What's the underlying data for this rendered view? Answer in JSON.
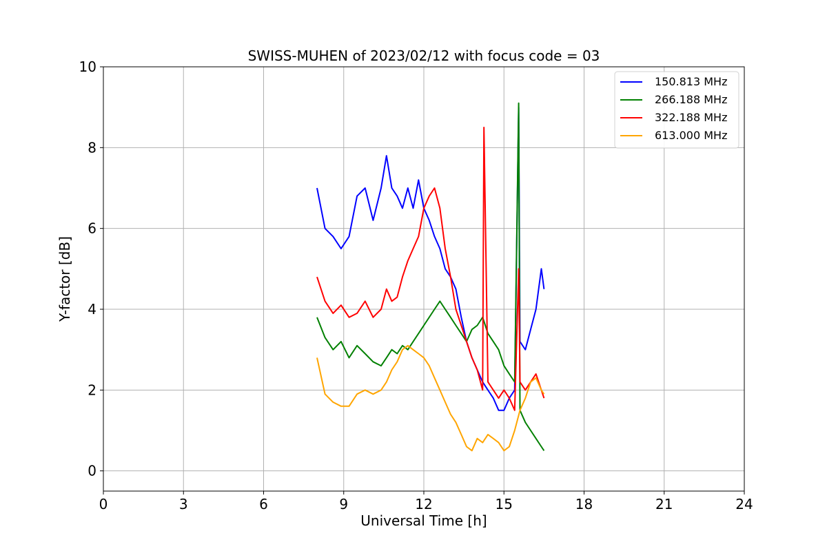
{
  "chart_data": {
    "type": "line",
    "title": "SWISS-MUHEN of 2023/02/12 with focus code = 03",
    "xlabel": "Universal Time [h]",
    "ylabel": "Y-factor [dB]",
    "xlim": [
      0,
      24
    ],
    "ylim": [
      -0.5,
      10
    ],
    "xticks": [
      0,
      3,
      6,
      9,
      12,
      15,
      18,
      21,
      24
    ],
    "yticks": [
      0,
      2,
      4,
      6,
      8,
      10
    ],
    "xtick_labels": [
      "0",
      "3",
      "6",
      "9",
      "12",
      "15",
      "18",
      "21",
      "24"
    ],
    "ytick_labels": [
      "0",
      "2",
      "4",
      "6",
      "8",
      "10"
    ],
    "grid": true,
    "legend_position": "top-right",
    "series": [
      {
        "name": "150.813 MHz",
        "color": "#0000ff",
        "x": [
          8.0,
          8.3,
          8.6,
          8.9,
          9.2,
          9.5,
          9.8,
          10.1,
          10.4,
          10.6,
          10.8,
          11.0,
          11.2,
          11.4,
          11.6,
          11.8,
          12.0,
          12.2,
          12.4,
          12.6,
          12.8,
          13.0,
          13.2,
          13.4,
          13.6,
          13.8,
          14.0,
          14.2,
          14.4,
          14.6,
          14.8,
          15.0,
          15.2,
          15.4,
          15.55,
          15.6,
          15.8,
          16.0,
          16.2,
          16.4,
          16.5
        ],
        "y": [
          7.0,
          6.0,
          5.8,
          5.5,
          5.8,
          6.8,
          7.0,
          6.2,
          7.0,
          7.8,
          7.0,
          6.8,
          6.5,
          7.0,
          6.5,
          7.2,
          6.5,
          6.2,
          5.8,
          5.5,
          5.0,
          4.8,
          4.5,
          3.8,
          3.2,
          2.8,
          2.5,
          2.2,
          2.0,
          1.8,
          1.5,
          1.5,
          1.8,
          2.0,
          9.0,
          3.2,
          3.0,
          3.5,
          4.0,
          5.0,
          4.5
        ],
        "values": [
          7.0,
          6.0,
          5.8,
          5.5,
          5.8,
          6.8,
          7.0,
          6.2,
          7.0,
          7.8,
          7.0,
          6.8,
          6.5,
          7.0,
          6.5,
          7.2,
          6.5,
          6.2,
          5.8,
          5.5,
          5.0,
          4.8,
          4.5,
          3.8,
          3.2,
          2.8,
          2.5,
          2.2,
          2.0,
          1.8,
          1.5,
          1.5,
          1.8,
          2.0,
          9.0,
          3.2,
          3.0,
          3.5,
          4.0,
          5.0,
          4.5
        ]
      },
      {
        "name": "266.188 MHz",
        "color": "#008000",
        "x": [
          8.0,
          8.3,
          8.6,
          8.9,
          9.2,
          9.5,
          9.8,
          10.1,
          10.4,
          10.6,
          10.8,
          11.0,
          11.2,
          11.4,
          11.6,
          11.8,
          12.0,
          12.2,
          12.4,
          12.6,
          12.8,
          13.0,
          13.2,
          13.4,
          13.6,
          13.8,
          14.0,
          14.2,
          14.4,
          14.6,
          14.8,
          15.0,
          15.2,
          15.4,
          15.55,
          15.6,
          15.8,
          16.0,
          16.2,
          16.4,
          16.5
        ],
        "y": [
          3.8,
          3.3,
          3.0,
          3.2,
          2.8,
          3.1,
          2.9,
          2.7,
          2.6,
          2.8,
          3.0,
          2.9,
          3.1,
          3.0,
          3.2,
          3.4,
          3.6,
          3.8,
          4.0,
          4.2,
          4.0,
          3.8,
          3.6,
          3.4,
          3.2,
          3.5,
          3.6,
          3.8,
          3.4,
          3.2,
          3.0,
          2.6,
          2.4,
          2.2,
          9.1,
          1.5,
          1.2,
          1.0,
          0.8,
          0.6,
          0.5
        ],
        "values": [
          3.8,
          3.3,
          3.0,
          3.2,
          2.8,
          3.1,
          2.9,
          2.7,
          2.6,
          2.8,
          3.0,
          2.9,
          3.1,
          3.0,
          3.2,
          3.4,
          3.6,
          3.8,
          4.0,
          4.2,
          4.0,
          3.8,
          3.6,
          3.4,
          3.2,
          3.5,
          3.6,
          3.8,
          3.4,
          3.2,
          3.0,
          2.6,
          2.4,
          2.2,
          9.1,
          1.5,
          1.2,
          1.0,
          0.8,
          0.6,
          0.5
        ]
      },
      {
        "name": "322.188 MHz",
        "color": "#ff0000",
        "x": [
          8.0,
          8.3,
          8.6,
          8.9,
          9.2,
          9.5,
          9.8,
          10.1,
          10.4,
          10.6,
          10.8,
          11.0,
          11.2,
          11.4,
          11.6,
          11.8,
          12.0,
          12.2,
          12.4,
          12.6,
          12.8,
          13.0,
          13.2,
          13.4,
          13.6,
          13.8,
          14.0,
          14.2,
          14.25,
          14.4,
          14.6,
          14.8,
          15.0,
          15.2,
          15.4,
          15.55,
          15.6,
          15.8,
          16.0,
          16.2,
          16.4,
          16.5
        ],
        "y": [
          4.8,
          4.2,
          3.9,
          4.1,
          3.8,
          3.9,
          4.2,
          3.8,
          4.0,
          4.5,
          4.2,
          4.3,
          4.8,
          5.2,
          5.5,
          5.8,
          6.5,
          6.8,
          7.0,
          6.5,
          5.5,
          4.8,
          4.0,
          3.6,
          3.2,
          2.8,
          2.5,
          2.0,
          8.5,
          2.2,
          2.0,
          1.8,
          2.0,
          1.8,
          1.5,
          5.0,
          2.2,
          2.0,
          2.2,
          2.4,
          2.0,
          1.8
        ],
        "values": [
          4.8,
          4.2,
          3.9,
          4.1,
          3.8,
          3.9,
          4.2,
          3.8,
          4.0,
          4.5,
          4.2,
          4.3,
          4.8,
          5.2,
          5.5,
          5.8,
          6.5,
          6.8,
          7.0,
          6.5,
          5.5,
          4.8,
          4.0,
          3.6,
          3.2,
          2.8,
          2.5,
          2.0,
          8.5,
          2.2,
          2.0,
          1.8,
          2.0,
          1.8,
          1.5,
          5.0,
          2.2,
          2.0,
          2.2,
          2.4,
          2.0,
          1.8
        ]
      },
      {
        "name": "613.000 MHz",
        "color": "#ffa500",
        "x": [
          8.0,
          8.3,
          8.6,
          8.9,
          9.2,
          9.5,
          9.8,
          10.1,
          10.4,
          10.6,
          10.8,
          11.0,
          11.2,
          11.4,
          11.6,
          11.8,
          12.0,
          12.2,
          12.4,
          12.6,
          12.8,
          13.0,
          13.2,
          13.4,
          13.6,
          13.8,
          14.0,
          14.2,
          14.4,
          14.6,
          14.8,
          15.0,
          15.2,
          15.4,
          15.6,
          15.8,
          16.0,
          16.2,
          16.4,
          16.5
        ],
        "y": [
          2.8,
          1.9,
          1.7,
          1.6,
          1.6,
          1.9,
          2.0,
          1.9,
          2.0,
          2.2,
          2.5,
          2.7,
          3.0,
          3.1,
          3.0,
          2.9,
          2.8,
          2.6,
          2.3,
          2.0,
          1.7,
          1.4,
          1.2,
          0.9,
          0.6,
          0.5,
          0.8,
          0.7,
          0.9,
          0.8,
          0.7,
          0.5,
          0.6,
          1.0,
          1.5,
          1.8,
          2.2,
          2.3,
          2.0,
          1.9
        ],
        "values": [
          2.8,
          1.9,
          1.7,
          1.6,
          1.6,
          1.9,
          2.0,
          1.9,
          2.0,
          2.2,
          2.5,
          2.7,
          3.0,
          3.1,
          3.0,
          2.9,
          2.8,
          2.6,
          2.3,
          2.0,
          1.7,
          1.4,
          1.2,
          0.9,
          0.6,
          0.5,
          0.8,
          0.7,
          0.9,
          0.8,
          0.7,
          0.5,
          0.6,
          1.0,
          1.5,
          1.8,
          2.2,
          2.3,
          2.0,
          1.9
        ]
      }
    ]
  }
}
